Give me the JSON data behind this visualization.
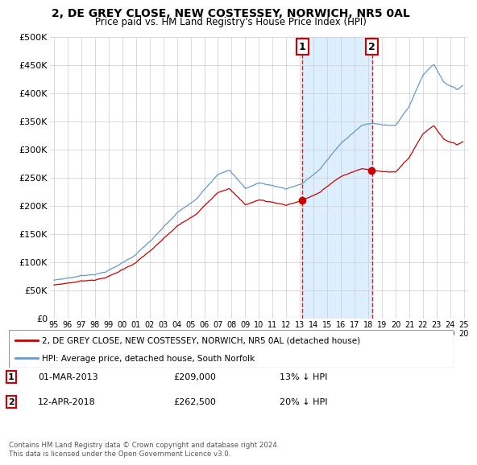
{
  "title": "2, DE GREY CLOSE, NEW COSTESSEY, NORWICH, NR5 0AL",
  "subtitle": "Price paid vs. HM Land Registry's House Price Index (HPI)",
  "ylabel_ticks": [
    "£0",
    "£50K",
    "£100K",
    "£150K",
    "£200K",
    "£250K",
    "£300K",
    "£350K",
    "£400K",
    "£450K",
    "£500K"
  ],
  "ytick_values": [
    0,
    50000,
    100000,
    150000,
    200000,
    250000,
    300000,
    350000,
    400000,
    450000,
    500000
  ],
  "ylim": [
    0,
    500000
  ],
  "xlim_start": 1994.7,
  "xlim_end": 2025.3,
  "hpi_color": "#6699cc",
  "property_color": "#cc0000",
  "highlight_color": "#ddeeff",
  "sale1_year": 2013.17,
  "sale1_price": 209000,
  "sale1_label": "1",
  "sale1_date": "01-MAR-2013",
  "sale1_pct": "13% ↓ HPI",
  "sale2_year": 2018.28,
  "sale2_price": 262500,
  "sale2_label": "2",
  "sale2_date": "12-APR-2018",
  "sale2_pct": "20% ↓ HPI",
  "legend_property": "2, DE GREY CLOSE, NEW COSTESSEY, NORWICH, NR5 0AL (detached house)",
  "legend_hpi": "HPI: Average price, detached house, South Norfolk",
  "footer": "Contains HM Land Registry data © Crown copyright and database right 2024.\nThis data is licensed under the Open Government Licence v3.0.",
  "xtick_years": [
    1995,
    1996,
    1997,
    1998,
    1999,
    2000,
    2001,
    2002,
    2003,
    2004,
    2005,
    2006,
    2007,
    2008,
    2009,
    2010,
    2011,
    2012,
    2013,
    2014,
    2015,
    2016,
    2017,
    2018,
    2019,
    2020,
    2021,
    2022,
    2023,
    2024,
    2025
  ]
}
